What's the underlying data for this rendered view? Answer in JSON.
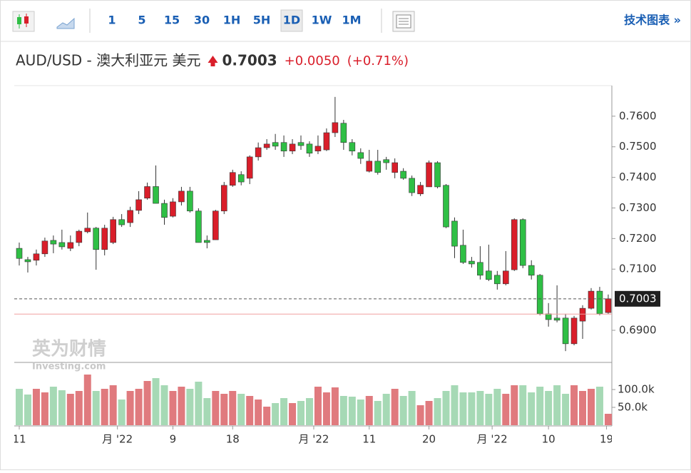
{
  "toolbar": {
    "intervals": [
      "1",
      "5",
      "15",
      "30",
      "1H",
      "5H",
      "1D",
      "1W",
      "1M"
    ],
    "active": "1D",
    "link": "技术图表 »"
  },
  "header": {
    "title": "AUD/USD - 澳大利亚元 美元",
    "change": "+0.0050",
    "change_pct": "(+0.71%)"
  },
  "watermark": {
    "brand": "英为财情",
    "site": "Investing.com"
  },
  "chart_data": {
    "type": "candlestick",
    "last_price": 0.7003,
    "reference_line": 0.6953,
    "up_color": "#d91e2a",
    "down_color": "#2fbf45",
    "up_volume_color": "#e07a7e",
    "down_volume_color": "#a6d9b5",
    "open": [
      0.7168,
      0.7131,
      0.7129,
      0.715,
      0.7194,
      0.7187,
      0.7168,
      0.7187,
      0.7222,
      0.7234,
      0.7164,
      0.7187,
      0.7262,
      0.7252,
      0.7292,
      0.7332,
      0.737,
      0.7315,
      0.7273,
      0.732,
      0.7355,
      0.729,
      0.7194,
      0.7196,
      0.729,
      0.7374,
      0.7409,
      0.7397,
      0.7467,
      0.7497,
      0.7514,
      0.7514,
      0.7486,
      0.7514,
      0.7509,
      0.7486,
      0.749,
      0.7546,
      0.7577,
      0.7514,
      0.7481,
      0.742,
      0.7453,
      0.7458,
      0.7416,
      0.742,
      0.7397,
      0.7346,
      0.7369,
      0.7448,
      0.7374,
      0.7257,
      0.7178,
      0.7126,
      0.7122,
      0.7094,
      0.708,
      0.7052,
      0.7098,
      0.7262,
      0.7112,
      0.708,
      0.6954,
      0.694,
      0.694,
      0.6856,
      0.693,
      0.6972,
      0.7028,
      0.6958
    ],
    "high": [
      0.7187,
      0.714,
      0.7164,
      0.7203,
      0.721,
      0.7229,
      0.721,
      0.7229,
      0.7285,
      0.7238,
      0.7245,
      0.7271,
      0.728,
      0.7304,
      0.7355,
      0.7383,
      0.7439,
      0.7327,
      0.7332,
      0.7369,
      0.7369,
      0.7299,
      0.721,
      0.7294,
      0.7385,
      0.7425,
      0.742,
      0.7472,
      0.7514,
      0.7525,
      0.7542,
      0.7537,
      0.7525,
      0.7537,
      0.7518,
      0.7537,
      0.756,
      0.7663,
      0.7588,
      0.7525,
      0.7495,
      0.749,
      0.749,
      0.7467,
      0.7462,
      0.743,
      0.7406,
      0.7385,
      0.7455,
      0.7453,
      0.7378,
      0.7269,
      0.7229,
      0.714,
      0.7175,
      0.718,
      0.7094,
      0.7159,
      0.7266,
      0.7266,
      0.7129,
      0.7084,
      0.6989,
      0.7047,
      0.6954,
      0.6947,
      0.6982,
      0.7038,
      0.7042,
      0.7017
    ],
    "low": [
      0.7112,
      0.7089,
      0.7112,
      0.714,
      0.7152,
      0.7164,
      0.7159,
      0.7175,
      0.7217,
      0.7098,
      0.7145,
      0.7182,
      0.7238,
      0.7238,
      0.728,
      0.7327,
      0.7315,
      0.7245,
      0.7269,
      0.7308,
      0.7285,
      0.7187,
      0.7168,
      0.7196,
      0.728,
      0.7369,
      0.7374,
      0.7378,
      0.7455,
      0.749,
      0.749,
      0.7467,
      0.7476,
      0.749,
      0.7467,
      0.7476,
      0.7486,
      0.7532,
      0.749,
      0.7472,
      0.7444,
      0.7416,
      0.7409,
      0.7425,
      0.7397,
      0.7392,
      0.7339,
      0.7339,
      0.7369,
      0.7364,
      0.7234,
      0.7136,
      0.7117,
      0.7105,
      0.7066,
      0.7061,
      0.7033,
      0.7047,
      0.7094,
      0.7103,
      0.7066,
      0.6949,
      0.6912,
      0.6926,
      0.6832,
      0.6851,
      0.6872,
      0.6968,
      0.6949,
      0.6954
    ],
    "close": [
      0.7135,
      0.7124,
      0.715,
      0.7192,
      0.7182,
      0.7173,
      0.7187,
      0.7224,
      0.7234,
      0.7164,
      0.7234,
      0.7262,
      0.7245,
      0.7292,
      0.7327,
      0.737,
      0.7315,
      0.7269,
      0.732,
      0.7355,
      0.729,
      0.7187,
      0.7187,
      0.729,
      0.7374,
      0.7416,
      0.7385,
      0.7467,
      0.7497,
      0.7509,
      0.7502,
      0.7486,
      0.7509,
      0.7504,
      0.7479,
      0.7502,
      0.7546,
      0.7579,
      0.7514,
      0.7486,
      0.7462,
      0.7453,
      0.7416,
      0.7448,
      0.7448,
      0.7397,
      0.735,
      0.7374,
      0.7448,
      0.7369,
      0.7238,
      0.7175,
      0.7122,
      0.7117,
      0.708,
      0.7066,
      0.7052,
      0.7094,
      0.7262,
      0.7112,
      0.708,
      0.6954,
      0.6935,
      0.6933,
      0.6856,
      0.694,
      0.6972,
      0.7028,
      0.6954,
      0.7003
    ],
    "volume": [
      102000,
      86000,
      102000,
      92000,
      108000,
      98000,
      88000,
      96000,
      142000,
      96000,
      102000,
      112000,
      72000,
      96000,
      102000,
      124000,
      132000,
      112000,
      96000,
      108000,
      102000,
      122000,
      76000,
      96000,
      88000,
      96000,
      88000,
      82000,
      72000,
      52000,
      62000,
      76000,
      62000,
      68000,
      76000,
      108000,
      92000,
      106000,
      82000,
      80000,
      72000,
      82000,
      68000,
      88000,
      102000,
      82000,
      96000,
      56000,
      68000,
      76000,
      96000,
      112000,
      92000,
      92000,
      96000,
      88000,
      102000,
      88000,
      112000,
      112000,
      92000,
      108000,
      96000,
      112000,
      88000,
      112000,
      96000,
      102000,
      108000,
      32000
    ],
    "ylim": [
      0.6795,
      0.77
    ],
    "yticks": [
      {
        "value": 0.69,
        "label": "0.6900"
      },
      {
        "value": 0.71,
        "label": "0.7100"
      },
      {
        "value": 0.72,
        "label": "0.7200"
      },
      {
        "value": 0.73,
        "label": "0.7300"
      },
      {
        "value": 0.74,
        "label": "0.7400"
      },
      {
        "value": 0.75,
        "label": "0.7500"
      },
      {
        "value": 0.76,
        "label": "0.7600"
      }
    ],
    "volume_ylim": [
      0,
      162000
    ],
    "volume_ticks": [
      {
        "value": 50000,
        "label": "50.0k"
      },
      {
        "value": 100000,
        "label": "100.0k"
      }
    ],
    "xticks": [
      {
        "value": 0,
        "label": "11"
      },
      {
        "value": 11.5,
        "label": "月 '22"
      },
      {
        "value": 18,
        "label": "9"
      },
      {
        "value": 25,
        "label": "18"
      },
      {
        "value": 34.5,
        "label": "月 '22"
      },
      {
        "value": 41,
        "label": "11"
      },
      {
        "value": 48,
        "label": "20"
      },
      {
        "value": 55.4,
        "label": "月 '22"
      },
      {
        "value": 62,
        "label": "10"
      },
      {
        "value": 68.8,
        "label": "19"
      }
    ]
  }
}
